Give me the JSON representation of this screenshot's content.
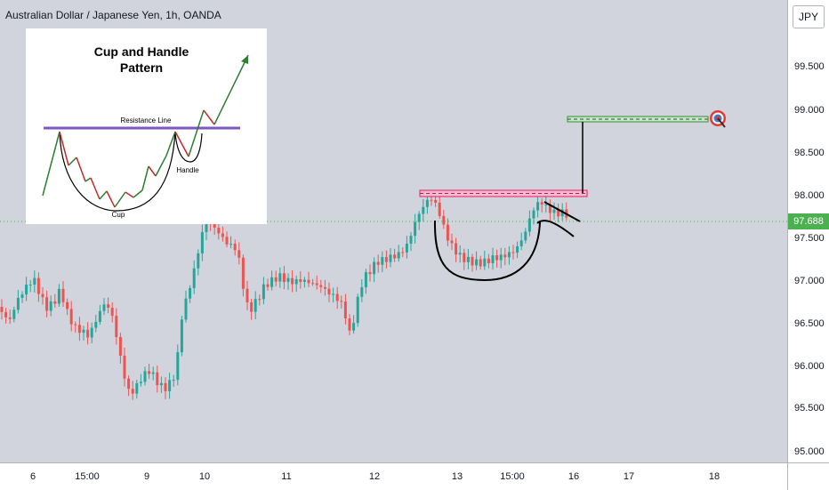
{
  "header": {
    "title": "Australian Dollar / Japanese Yen, 1h, OANDA"
  },
  "price_scale": {
    "currency": "JPY",
    "labels": [
      "99.500",
      "99.000",
      "98.500",
      "98.000",
      "97.500",
      "97.000",
      "96.500",
      "96.000",
      "95.500",
      "95.000"
    ],
    "current_price": "97.688",
    "current_price_color": "#4caf50"
  },
  "time_scale": {
    "labels": [
      "6",
      "15:00",
      "9",
      "10",
      "11",
      "12",
      "13",
      "15:00",
      "16",
      "17",
      "18"
    ]
  },
  "inset": {
    "title_line1": "Cup and Handle",
    "title_line2": "Pattern",
    "resistance_label": "Resistance Line",
    "handle_label": "Handle",
    "cup_label": "Cup"
  },
  "colors": {
    "up_candle": "#26a69a",
    "down_candle": "#ef5350",
    "resistance_zone": "#f48fb1",
    "target_zone": "#a5d6a7",
    "target_icon": "target-icon"
  }
}
